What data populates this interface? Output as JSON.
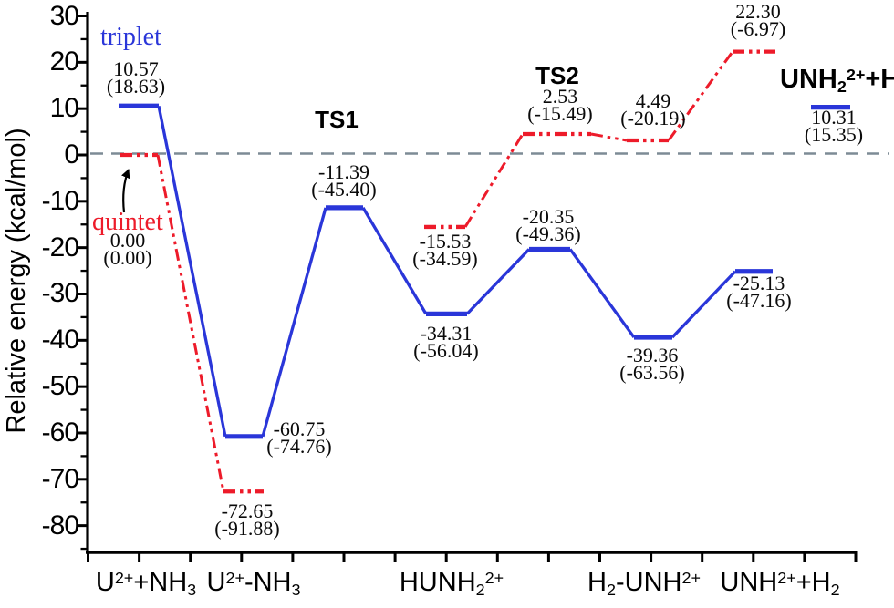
{
  "figure": {
    "y_axis_title": "Relative energy (kcal/mol)"
  },
  "annotations": {
    "triplet": "triplet",
    "quintet": "quintet",
    "ts1": "TS1",
    "ts2": "TS2",
    "product": {
      "text": "UNH₂²⁺+H",
      "parts": [
        {
          "t": "UNH",
          "s": "n"
        },
        {
          "t": "2",
          "s": "sub"
        },
        {
          "t": "2+",
          "s": "sup"
        },
        {
          "t": "+H",
          "s": "n"
        }
      ]
    }
  },
  "colors": {
    "triplet_blue": "#2a36d9",
    "quintet_red": "#ed1b2a",
    "zero_line_gray": "#7d8b95",
    "axis_black": "#000000"
  },
  "chart_data": {
    "type": "energy-profile",
    "title": "",
    "xlabel": "",
    "ylabel": "Relative energy (kcal/mol)",
    "units": "kcal/mol",
    "ylim": [
      -87,
      31
    ],
    "yticks_major": [
      30,
      20,
      10,
      0,
      -10,
      -20,
      -30,
      -40,
      -50,
      -60,
      -70,
      -80
    ],
    "yticks_minor": [
      25,
      15,
      5,
      -5,
      -15,
      -25,
      -35,
      -45,
      -55,
      -65,
      -75,
      -85
    ],
    "zero_baseline": 0,
    "grid": false,
    "legend_position": "inline-annotations",
    "x_categories": [
      {
        "text": "U²⁺+NH₃",
        "parts": [
          {
            "t": "U",
            "s": "n"
          },
          {
            "t": "2+",
            "s": "sup"
          },
          {
            "t": "+NH",
            "s": "n"
          },
          {
            "t": "3",
            "s": "sub"
          }
        ]
      },
      {
        "text": "U²⁺-NH₃",
        "parts": [
          {
            "t": "U",
            "s": "n"
          },
          {
            "t": "2+",
            "s": "sup"
          },
          {
            "t": "-NH",
            "s": "n"
          },
          {
            "t": "3",
            "s": "sub"
          }
        ]
      },
      {
        "text": "HUNH₂²⁺",
        "parts": [
          {
            "t": "HUNH",
            "s": "n"
          },
          {
            "t": "2",
            "s": "sub"
          },
          {
            "t": "2+",
            "s": "sup"
          }
        ]
      },
      {
        "text": "H₂-UNH²⁺",
        "parts": [
          {
            "t": "H",
            "s": "n"
          },
          {
            "t": "2",
            "s": "sub"
          },
          {
            "t": "-UNH",
            "s": "n"
          },
          {
            "t": "2+",
            "s": "sup"
          }
        ]
      },
      {
        "text": "UNH²⁺+H₂",
        "parts": [
          {
            "t": "UNH",
            "s": "n"
          },
          {
            "t": "2+",
            "s": "sup"
          },
          {
            "t": "+H",
            "s": "n"
          },
          {
            "t": "2",
            "s": "sub"
          }
        ]
      }
    ],
    "series": [
      {
        "name": "triplet",
        "color": "#2a36d9",
        "line_style": "solid",
        "levels": [
          {
            "station": "U²⁺+NH₃",
            "value": "10.57",
            "alt": "(18.63)"
          },
          {
            "station": "U²⁺-NH₃",
            "value": "-60.75",
            "alt": "(-74.76)"
          },
          {
            "station": "TS1",
            "value": "-11.39",
            "alt": "(-45.40)"
          },
          {
            "station": "HUNH₂²⁺",
            "value": "-34.31",
            "alt": "(-56.04)"
          },
          {
            "station": "TS2",
            "value": "-20.35",
            "alt": "(-49.36)"
          },
          {
            "station": "H₂-UNH²⁺",
            "value": "-39.36",
            "alt": "(-63.56)"
          },
          {
            "station": "UNH²⁺+H₂",
            "value": "-25.13",
            "alt": "(-47.16)"
          },
          {
            "station": "UNH₂²⁺+H",
            "value": "10.31",
            "alt": "(15.35)",
            "gap_before": true
          }
        ]
      },
      {
        "name": "quintet",
        "color": "#ed1b2a",
        "line_style": "dash-dot-dot",
        "levels": [
          {
            "station": "U²⁺+NH₃",
            "value": "0.00",
            "alt": "(0.00)"
          },
          {
            "station": "U²⁺-NH₃",
            "value": "-72.65",
            "alt": "(-91.88)"
          },
          {
            "station": "HUNH₂²⁺",
            "value": "-15.53",
            "alt": "(-34.59)",
            "gap_before": true
          },
          {
            "station": "TS2",
            "value": "2.53",
            "alt": "(-15.49)"
          },
          {
            "station": "H₂-UNH²⁺",
            "value": "4.49",
            "alt": "(-20.19)"
          },
          {
            "station": "UNH²⁺+H₂",
            "value": "22.30",
            "alt": "(-6.97)"
          }
        ]
      }
    ]
  }
}
